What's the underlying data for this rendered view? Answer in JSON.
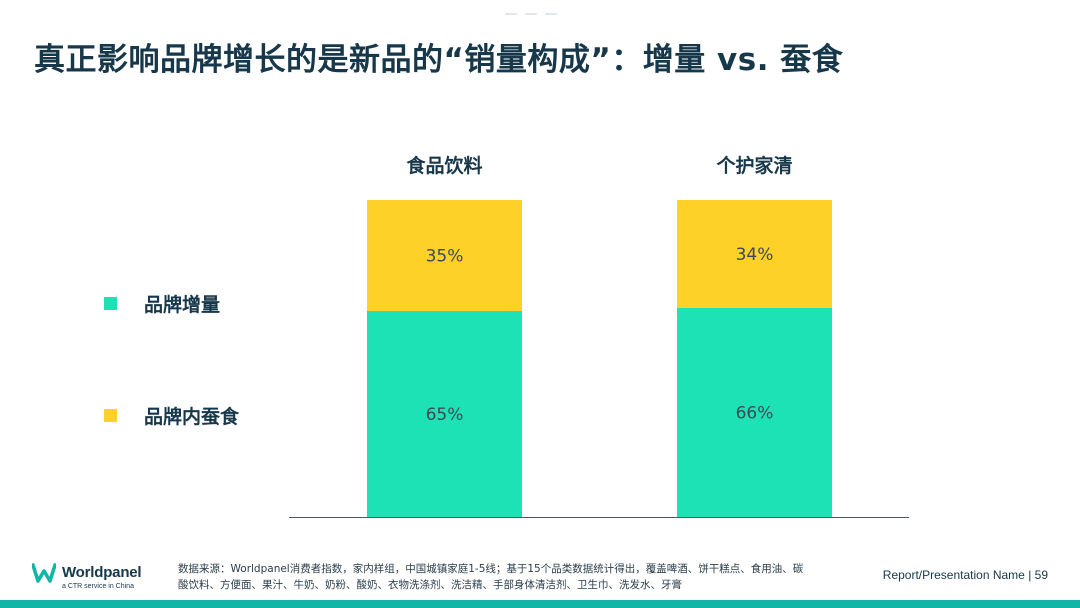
{
  "slide": {
    "title": "真正影响品牌增长的是新品的“销量构成”：增量 vs. 蚕食"
  },
  "chart_data": {
    "type": "bar",
    "stacked": true,
    "unit": "%",
    "categories": [
      "食品饮料",
      "个护家清"
    ],
    "series": [
      {
        "name": "品牌增量",
        "values": [
          65,
          66
        ],
        "labels": [
          "65%",
          "66%"
        ],
        "color": "#1de2b5"
      },
      {
        "name": "品牌内蚕食",
        "values": [
          35,
          34
        ],
        "labels": [
          "35%",
          "34%"
        ],
        "color": "#fdd128"
      }
    ],
    "ylim": [
      0,
      100
    ],
    "legend": "left",
    "grid": false
  },
  "footer": {
    "logo_text": "Worldpanel",
    "logo_subtext": "a CTR service in China",
    "source": "数据来源：Worldpanel消费者指数，家内样组，中国城镇家庭1-5线；基于15个品类数据统计得出，覆盖啤酒、饼干糕点、食用油、碳酸饮料、方便面、果汁、牛奶、奶粉、酸奶、衣物洗涤剂、洗洁精、手部身体清洁剂、卫生巾、洗发水、牙膏",
    "page_label": "Report/Presentation Name | 59",
    "accent_color": "#12b5a6"
  }
}
